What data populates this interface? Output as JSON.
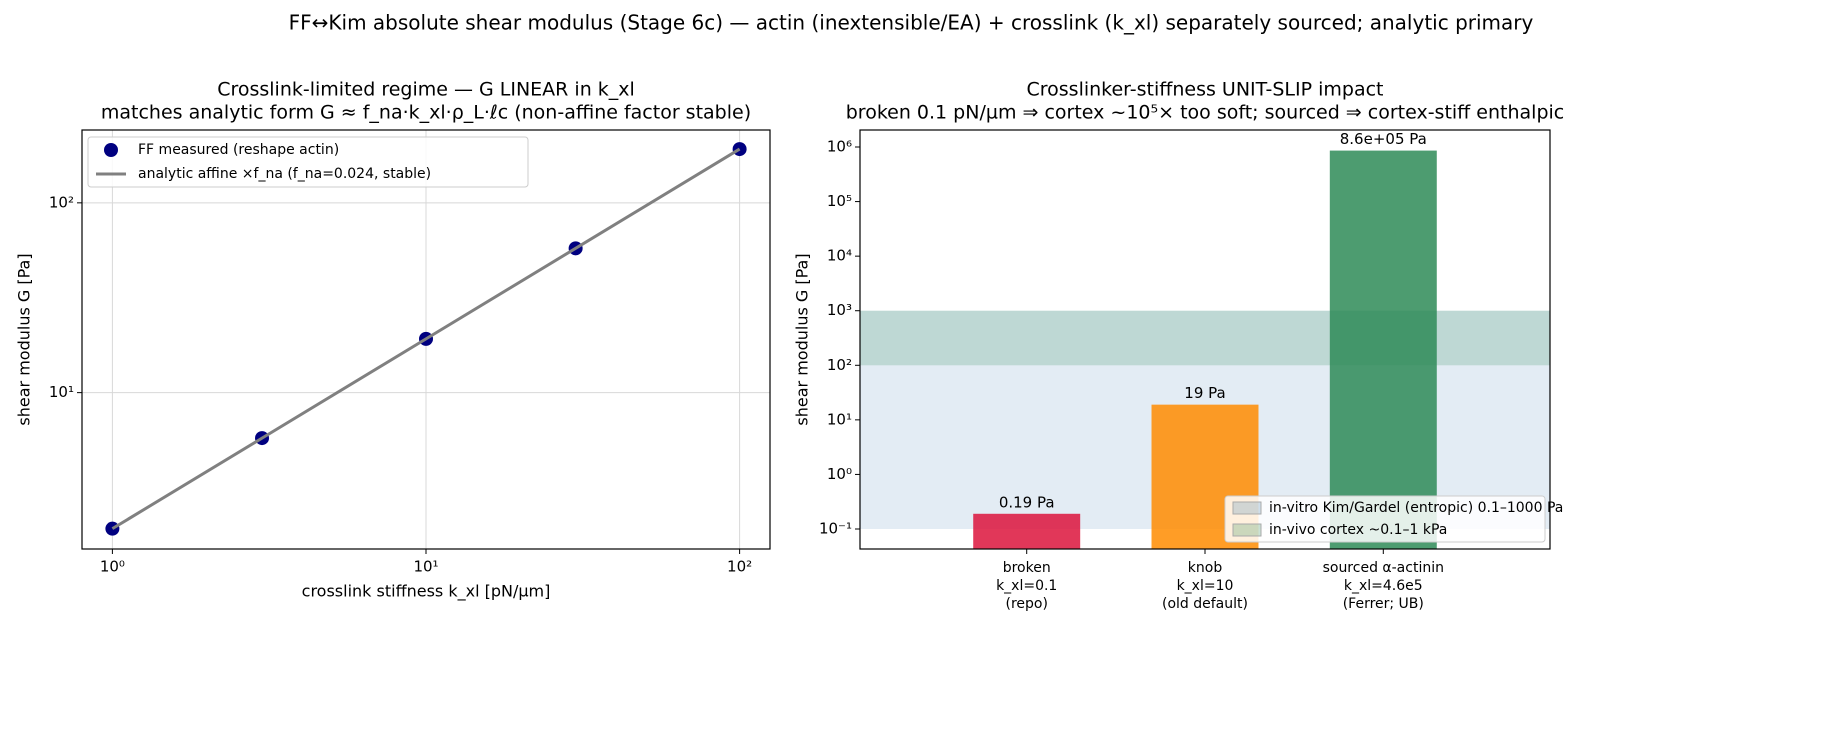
{
  "suptitle": "FF↔Kim absolute shear modulus (Stage 6c) — actin (inextensible/EA) + crosslink (k_xl) separately sourced; analytic primary",
  "chart_data": [
    {
      "type": "scatter",
      "title": [
        "Crosslink-limited regime — G LINEAR in k_xl",
        "matches analytic form G ≈ f_na·k_xl·ρ_L·ℓc (non-affine factor stable)"
      ],
      "xlabel": "crosslink stiffness k_xl  [pN/µm]",
      "ylabel": "shear modulus G  [Pa]",
      "x": [
        1,
        3,
        10,
        30,
        100
      ],
      "series": [
        {
          "name": "FF measured (reshape actin)",
          "color": "#000080",
          "style": "marker",
          "values": [
            1.92,
            5.76,
            19.2,
            57.6,
            192
          ]
        },
        {
          "name": "analytic affine ×f_na  (f_na=0.024, stable)",
          "color": "#808080",
          "style": "line",
          "values": [
            1.92,
            5.76,
            19.2,
            57.6,
            192
          ]
        }
      ],
      "xlog": true,
      "ylog": true,
      "xlim": [
        0.8,
        125
      ],
      "ylim": [
        1.5,
        242
      ],
      "xticks": [
        {
          "value": 1,
          "label": "10⁰"
        },
        {
          "value": 10,
          "label": "10¹"
        },
        {
          "value": 100,
          "label": "10²"
        }
      ],
      "yticks": [
        {
          "value": 10,
          "label": "10¹"
        },
        {
          "value": 100,
          "label": "10²"
        }
      ],
      "grid": true,
      "legend": "upper left"
    },
    {
      "type": "bar",
      "title": [
        "Crosslinker-stiffness UNIT-SLIP impact",
        "broken 0.1 pN/µm ⇒ cortex ~10⁵× too soft; sourced ⇒ cortex-stiff enthalpic"
      ],
      "ylabel": "shear modulus G  [Pa]",
      "categories": [
        [
          "broken",
          "k_xl=0.1",
          "(repo)"
        ],
        [
          "knob",
          "k_xl=10",
          "(old default)"
        ],
        [
          "sourced α-actinin",
          "k_xl=4.6e5",
          "(Ferrer; UB)"
        ]
      ],
      "values": [
        0.19,
        19,
        860000
      ],
      "value_labels": [
        "0.19 Pa",
        "19 Pa",
        "8.6e+05 Pa"
      ],
      "colors": [
        "#dc143c",
        "#ff8c00",
        "#2e8b57"
      ],
      "bands": [
        {
          "name": "in-vitro Kim/Gardel (entropic) 0.1–1000 Pa",
          "range": [
            0.1,
            1000
          ],
          "color": "#4682b4"
        },
        {
          "name": "in-vivo cortex ~0.1–1 kPa",
          "range": [
            100,
            1000
          ],
          "color": "#2e8b57"
        }
      ],
      "ylog": true,
      "ylim": [
        0.043,
        2050000
      ],
      "yticks": [
        {
          "value": 0.1,
          "label": "10⁻¹"
        },
        {
          "value": 1,
          "label": "10⁰"
        },
        {
          "value": 10,
          "label": "10¹"
        },
        {
          "value": 100,
          "label": "10²"
        },
        {
          "value": 1000,
          "label": "10³"
        },
        {
          "value": 10000,
          "label": "10⁴"
        },
        {
          "value": 100000,
          "label": "10⁵"
        },
        {
          "value": 1000000,
          "label": "10⁶"
        }
      ],
      "legend": "lower right"
    }
  ]
}
